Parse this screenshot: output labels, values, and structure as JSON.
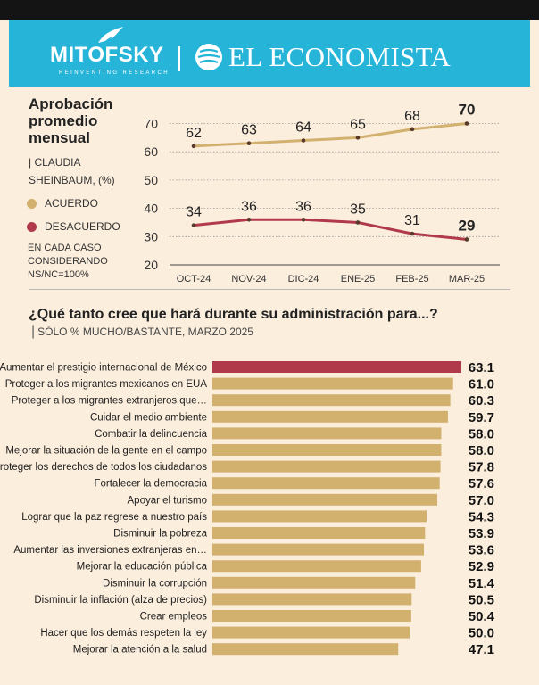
{
  "header": {
    "brand_left": "MITOFSKY",
    "brand_left_tagline": "REINVENTING RESEARCH",
    "brand_right": "EL ECONOMISTA",
    "colors": {
      "bar": "#141414",
      "banner": "#26b5d9"
    }
  },
  "section1": {
    "title": "Aprobación promedio mensual",
    "subtitle": "| CLAUDIA SHEINBAUM, (%)",
    "legend": [
      {
        "label": "ACUERDO",
        "color": "#d2b06e"
      },
      {
        "label": "DESACUERDO",
        "color": "#b03a4a"
      }
    ],
    "note": "EN CADA CASO CONSIDERANDO NS/NC=100%"
  },
  "section2": {
    "title": "¿Qué tanto cree que hará durante su administración para...?",
    "title_note": "SÓLO % MUCHO/BASTANTE, MARZO 2025"
  },
  "chart_data": [
    {
      "type": "line",
      "title": "Aprobación promedio mensual",
      "categories": [
        "OCT-24",
        "NOV-24",
        "DIC-24",
        "ENE-25",
        "FEB-25",
        "MAR-25"
      ],
      "series": [
        {
          "name": "ACUERDO",
          "color": "#d2b06e",
          "values": [
            62,
            63,
            64,
            65,
            68,
            70
          ]
        },
        {
          "name": "DESACUERDO",
          "color": "#b03a4a",
          "values": [
            34,
            36,
            36,
            35,
            31,
            29
          ]
        }
      ],
      "yticks": [
        20,
        30,
        40,
        50,
        60,
        70
      ],
      "ylim": [
        20,
        72
      ],
      "grid": true
    },
    {
      "type": "bar",
      "orientation": "horizontal",
      "title": "¿Qué tanto cree que hará durante su administración para...?",
      "categories": [
        "Aumentar el prestigio internacional de México",
        "Proteger a los migrantes mexicanos en EUA",
        "Proteger a los migrantes extranjeros que…",
        "Cuidar el medio ambiente",
        "Combatir la delincuencia",
        "Mejorar la situación de la gente en el campo",
        "Proteger los derechos de todos los ciudadanos",
        "Fortalecer la democracia",
        "Apoyar el turismo",
        "Lograr que la paz regrese a nuestro país",
        "Disminuir la pobreza",
        "Aumentar las inversiones extranjeras en…",
        "Mejorar la educación pública",
        "Disminuir la corrupción",
        "Disminuir la inflación (alza de precios)",
        "Crear empleos",
        "Hacer que los demás respeten la ley",
        "Mejorar la atención a la salud"
      ],
      "values": [
        63.1,
        61.0,
        60.3,
        59.7,
        58.0,
        58.0,
        57.8,
        57.6,
        57.0,
        54.3,
        53.9,
        53.6,
        52.9,
        51.4,
        50.5,
        50.4,
        50.0,
        47.1
      ],
      "value_labels": [
        "63.1",
        "61.0",
        "60.3",
        "59.7",
        "58.0",
        "58.0",
        "57.8",
        "57.6",
        "57.0",
        "54.3",
        "53.9",
        "53.6",
        "52.9",
        "51.4",
        "50.5",
        "50.4",
        "50.0",
        "47.1"
      ],
      "highlight_index": 0,
      "colors": {
        "highlight": "#b03a4a",
        "default": "#d2b06e"
      },
      "xlim": [
        0,
        63.1
      ]
    }
  ]
}
